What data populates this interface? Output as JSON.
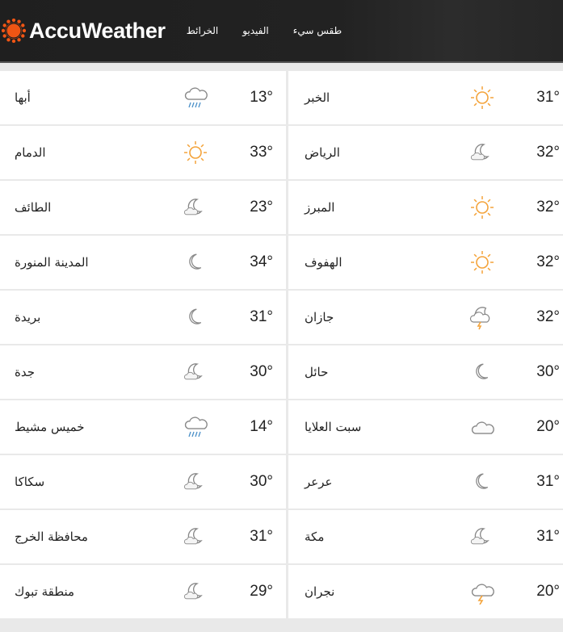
{
  "header": {
    "brand": "AccuWeather",
    "brand_color": "#f05514",
    "nav": [
      "طقس سيء",
      "الفيديو",
      "الخرائط"
    ]
  },
  "rows": [
    [
      {
        "city": "أبها",
        "icon": "rain",
        "temp": "13°"
      },
      {
        "city": "الخبر",
        "icon": "sun",
        "temp": "31°"
      }
    ],
    [
      {
        "city": "الدمام",
        "icon": "sun",
        "temp": "33°"
      },
      {
        "city": "الرياض",
        "icon": "moon-cloud",
        "temp": "32°"
      }
    ],
    [
      {
        "city": "الطائف",
        "icon": "moon-cloud",
        "temp": "23°"
      },
      {
        "city": "المبرز",
        "icon": "sun",
        "temp": "32°"
      }
    ],
    [
      {
        "city": "المدينة المنورة",
        "icon": "moon",
        "temp": "34°"
      },
      {
        "city": "الهفوف",
        "icon": "sun",
        "temp": "32°"
      }
    ],
    [
      {
        "city": "بريدة",
        "icon": "moon",
        "temp": "31°"
      },
      {
        "city": "جازان",
        "icon": "moon-thunder",
        "temp": "32°"
      }
    ],
    [
      {
        "city": "جدة",
        "icon": "moon-cloud",
        "temp": "30°"
      },
      {
        "city": "حائل",
        "icon": "moon",
        "temp": "30°"
      }
    ],
    [
      {
        "city": "خميس مشيط",
        "icon": "rain",
        "temp": "14°"
      },
      {
        "city": "سبت العلايا",
        "icon": "cloud",
        "temp": "20°"
      }
    ],
    [
      {
        "city": "سكاكا",
        "icon": "moon-cloud",
        "temp": "30°"
      },
      {
        "city": "عرعر",
        "icon": "moon",
        "temp": "31°"
      }
    ],
    [
      {
        "city": "محافظة الخرج",
        "icon": "moon-cloud",
        "temp": "31°"
      },
      {
        "city": "مكة",
        "icon": "moon-cloud",
        "temp": "31°"
      }
    ],
    [
      {
        "city": "منطقة تبوك",
        "icon": "moon-cloud",
        "temp": "29°"
      },
      {
        "city": "نجران",
        "icon": "thunder",
        "temp": "20°"
      }
    ]
  ]
}
